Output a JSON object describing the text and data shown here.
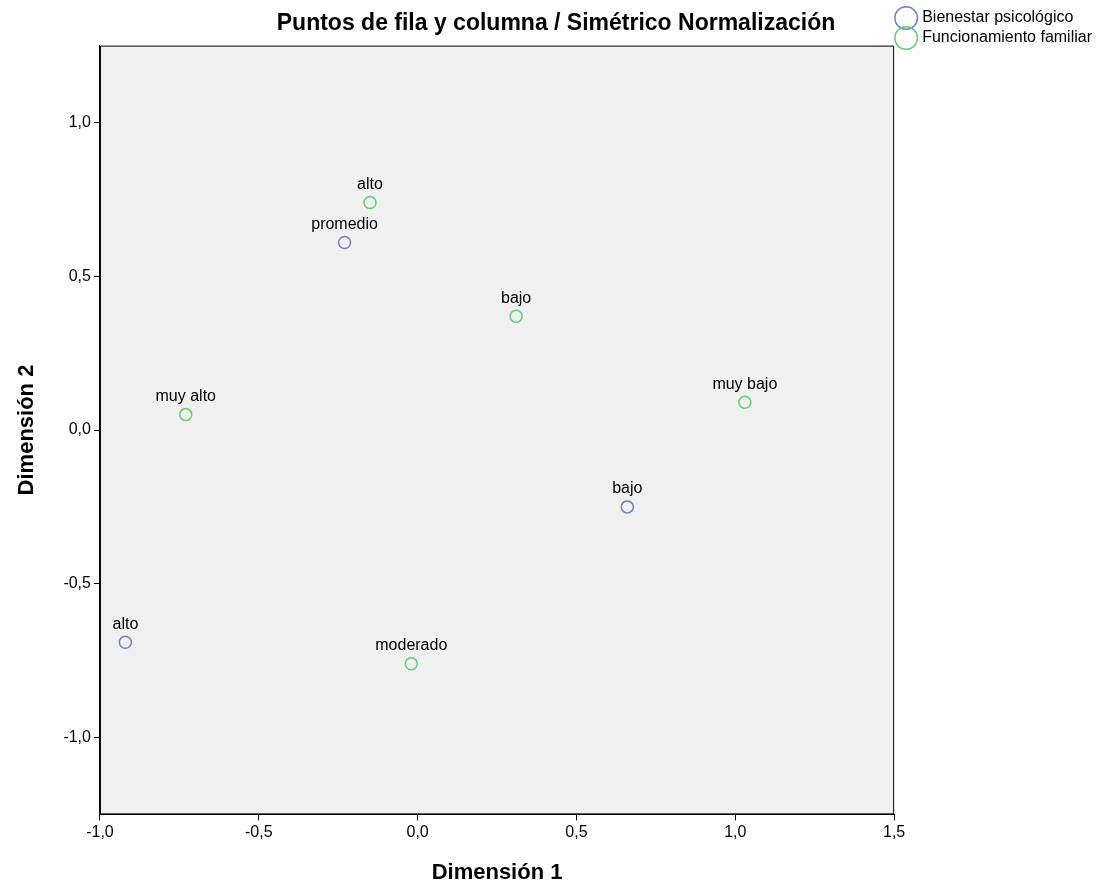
{
  "chart_data": {
    "type": "scatter",
    "title": "Puntos de fila y columna / Simétrico Normalización",
    "xlabel": "Dimensión 1",
    "ylabel": "Dimensión 2",
    "series": [
      {
        "name": "Bienestar psicológico",
        "color": "#6f7fcf",
        "x": [
          -0.23,
          0.66,
          -0.92
        ],
        "values": [
          0.61,
          -0.25,
          -0.69
        ]
      },
      {
        "name": "Funcionamiento familiar",
        "color": "#5fcf6f",
        "x": [
          -0.15,
          0.31,
          1.03,
          -0.73,
          -0.02
        ],
        "values": [
          0.74,
          0.37,
          0.09,
          0.05,
          -0.76
        ]
      }
    ],
    "annotations": [
      {
        "text": "promedio",
        "x": -0.23,
        "y": 0.61
      },
      {
        "text": "bajo",
        "x": 0.66,
        "y": -0.25
      },
      {
        "text": "alto",
        "x": -0.92,
        "y": -0.69
      },
      {
        "text": "alto",
        "x": -0.15,
        "y": 0.74
      },
      {
        "text": "bajo",
        "x": 0.31,
        "y": 0.37
      },
      {
        "text": "muy bajo",
        "x": 1.03,
        "y": 0.09
      },
      {
        "text": "muy alto",
        "x": -0.73,
        "y": 0.05
      },
      {
        "text": "moderado",
        "x": -0.02,
        "y": -0.76
      }
    ],
    "xlim": [
      -1,
      1.5
    ],
    "ylim": [
      -1.25,
      1.25
    ],
    "xticks": [
      {
        "value": -1,
        "label": "-1,0"
      },
      {
        "value": -0.5,
        "label": "-0,5"
      },
      {
        "value": 0,
        "label": "0,0"
      },
      {
        "value": 0.5,
        "label": "0,5"
      },
      {
        "value": 1,
        "label": "1,0"
      },
      {
        "value": 1.5,
        "label": "1,5"
      }
    ],
    "yticks": [
      {
        "value": -1,
        "label": "-1,0"
      },
      {
        "value": -0.5,
        "label": "-0,5"
      },
      {
        "value": 0,
        "label": "0,0"
      },
      {
        "value": 0.5,
        "label": "0,5"
      },
      {
        "value": 1,
        "label": "1,0"
      }
    ],
    "grid": false,
    "legend": "top right",
    "marker": "circle"
  }
}
